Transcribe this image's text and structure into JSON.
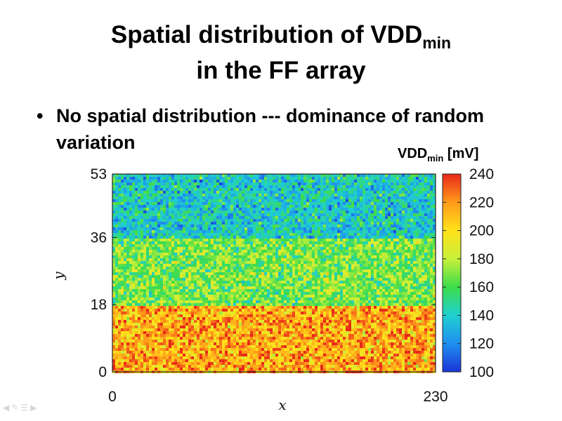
{
  "slide": {
    "title_main": "Spatial distribution of VDD",
    "title_sub": "min",
    "title_line2": "in the FF array",
    "bullet_symbol": "•",
    "bullet_text": "No spatial distribution --- dominance of random variation"
  },
  "nav_icons": [
    "arrow-left-icon",
    "pen-icon",
    "menu-icon",
    "arrow-right-icon"
  ],
  "chart_data": {
    "type": "heatmap",
    "xlabel": "x",
    "ylabel": "y",
    "xlim": [
      0,
      230
    ],
    "ylim": [
      0,
      53
    ],
    "x_ticks": [
      "0",
      "230"
    ],
    "y_ticks": [
      "0",
      "18",
      "36",
      "53"
    ],
    "colorbar": {
      "label_main": "VDD",
      "label_sub": "min",
      "label_unit": " [mV]",
      "range": [
        100,
        240
      ],
      "ticks": [
        "100",
        "120",
        "140",
        "160",
        "180",
        "200",
        "220",
        "240"
      ],
      "colors": [
        "#1a35d8",
        "#1f8ff0",
        "#1fd0d0",
        "#3ddc4a",
        "#c8f03a",
        "#ffe21a",
        "#ff9a1a",
        "#e8281a"
      ]
    },
    "regions": [
      {
        "y_range": [
          36,
          53
        ],
        "mean_mV": 140,
        "spread_mV": 14
      },
      {
        "y_range": [
          18,
          36
        ],
        "mean_mV": 168,
        "spread_mV": 14
      },
      {
        "y_range": [
          0,
          18
        ],
        "mean_mV": 215,
        "spread_mV": 16
      }
    ],
    "grid": false
  }
}
